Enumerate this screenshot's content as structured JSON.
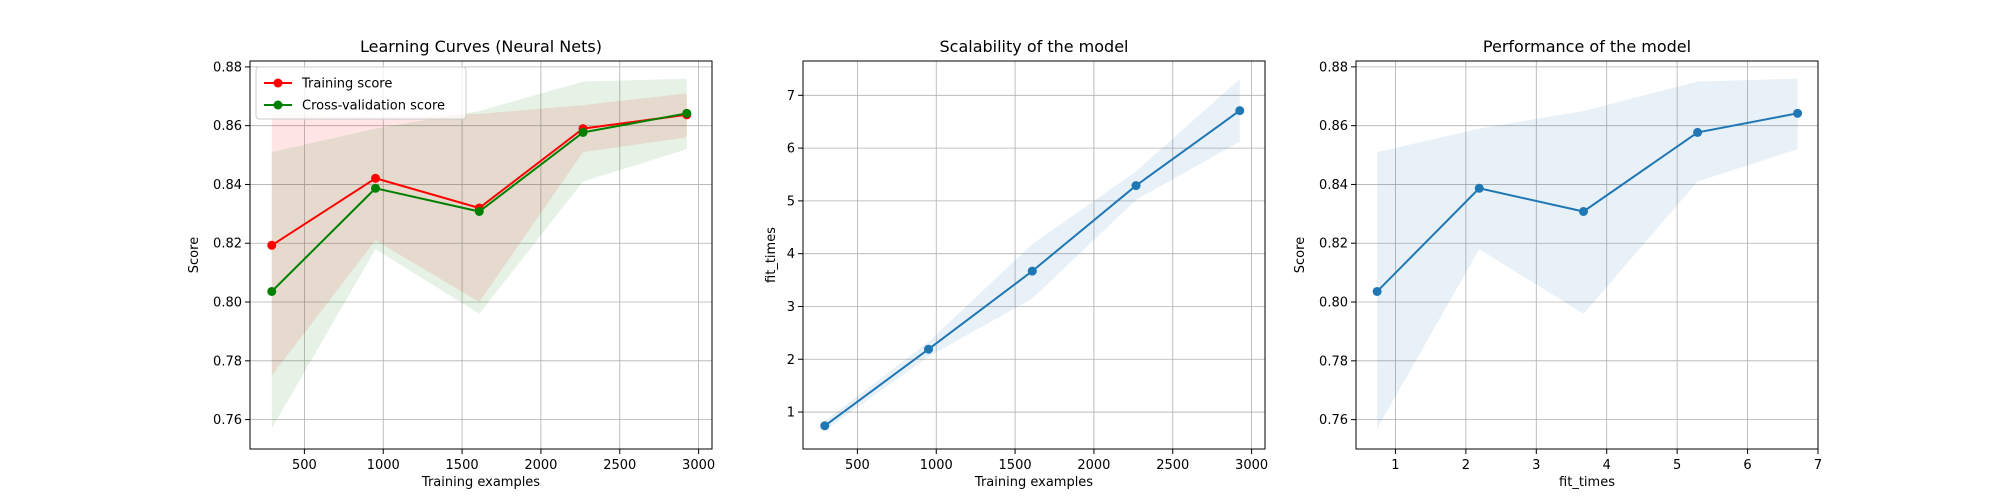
{
  "chart_data": [
    {
      "type": "line",
      "title": "Learning Curves (Neural Nets)",
      "xlabel": "Training examples",
      "ylabel": "Score",
      "xlim": [
        155,
        3085
      ],
      "ylim": [
        0.75,
        0.882
      ],
      "xticks": [
        500,
        1000,
        1500,
        2000,
        2500,
        3000
      ],
      "xtick_labels": [
        "500",
        "1000",
        "1500",
        "2000",
        "2500",
        "3000"
      ],
      "yticks": [
        0.76,
        0.78,
        0.8,
        0.82,
        0.84,
        0.86,
        0.88
      ],
      "ytick_labels": [
        "0.76",
        "0.78",
        "0.80",
        "0.82",
        "0.84",
        "0.86",
        "0.88"
      ],
      "grid": true,
      "legend": "top-left",
      "x": [
        293,
        951,
        1609,
        2267,
        2925
      ],
      "series": [
        {
          "name": "Training score",
          "color": "#ff0000",
          "values": [
            0.8193,
            0.8421,
            0.832,
            0.859,
            0.8637
          ],
          "band_low": [
            0.775,
            0.821,
            0.8,
            0.851,
            0.856
          ],
          "band_high": [
            0.864,
            0.863,
            0.864,
            0.867,
            0.871
          ]
        },
        {
          "name": "Cross-validation score",
          "color": "#008000",
          "values": [
            0.8036,
            0.8387,
            0.8308,
            0.8577,
            0.8642
          ],
          "band_low": [
            0.757,
            0.818,
            0.796,
            0.841,
            0.852
          ],
          "band_high": [
            0.851,
            0.859,
            0.865,
            0.875,
            0.876
          ]
        }
      ]
    },
    {
      "type": "line",
      "title": "Scalability of the model",
      "xlabel": "Training examples",
      "ylabel": "fit_times",
      "xlim": [
        155,
        3085
      ],
      "ylim": [
        0.3,
        7.65
      ],
      "xticks": [
        500,
        1000,
        1500,
        2000,
        2500,
        3000
      ],
      "xtick_labels": [
        "500",
        "1000",
        "1500",
        "2000",
        "2500",
        "3000"
      ],
      "yticks": [
        1,
        2,
        3,
        4,
        5,
        6,
        7
      ],
      "ytick_labels": [
        "1",
        "2",
        "3",
        "4",
        "5",
        "6",
        "7"
      ],
      "grid": true,
      "x": [
        293,
        951,
        1609,
        2267,
        2925
      ],
      "series": [
        {
          "color": "#1f77b4",
          "values": [
            0.74,
            2.19,
            3.67,
            5.29,
            6.71
          ],
          "band_low": [
            0.65,
            2.05,
            3.15,
            5.02,
            6.12
          ],
          "band_high": [
            0.83,
            2.33,
            4.18,
            5.56,
            7.31
          ]
        }
      ]
    },
    {
      "type": "line",
      "title": "Performance of the model",
      "xlabel": "fit_times",
      "ylabel": "Score",
      "xlim": [
        0.44,
        7.0
      ],
      "ylim": [
        0.75,
        0.882
      ],
      "xticks": [
        1,
        2,
        3,
        4,
        5,
        6,
        7
      ],
      "xtick_labels": [
        "1",
        "2",
        "3",
        "4",
        "5",
        "6",
        "7"
      ],
      "yticks": [
        0.76,
        0.78,
        0.8,
        0.82,
        0.84,
        0.86,
        0.88
      ],
      "ytick_labels": [
        "0.76",
        "0.78",
        "0.80",
        "0.82",
        "0.84",
        "0.86",
        "0.88"
      ],
      "grid": true,
      "x": [
        0.74,
        2.19,
        3.67,
        5.29,
        6.71
      ],
      "series": [
        {
          "color": "#1f77b4",
          "values": [
            0.8036,
            0.8387,
            0.8308,
            0.8577,
            0.8642
          ],
          "band_low": [
            0.757,
            0.818,
            0.796,
            0.841,
            0.852
          ],
          "band_high": [
            0.851,
            0.859,
            0.865,
            0.875,
            0.876
          ]
        }
      ]
    }
  ]
}
